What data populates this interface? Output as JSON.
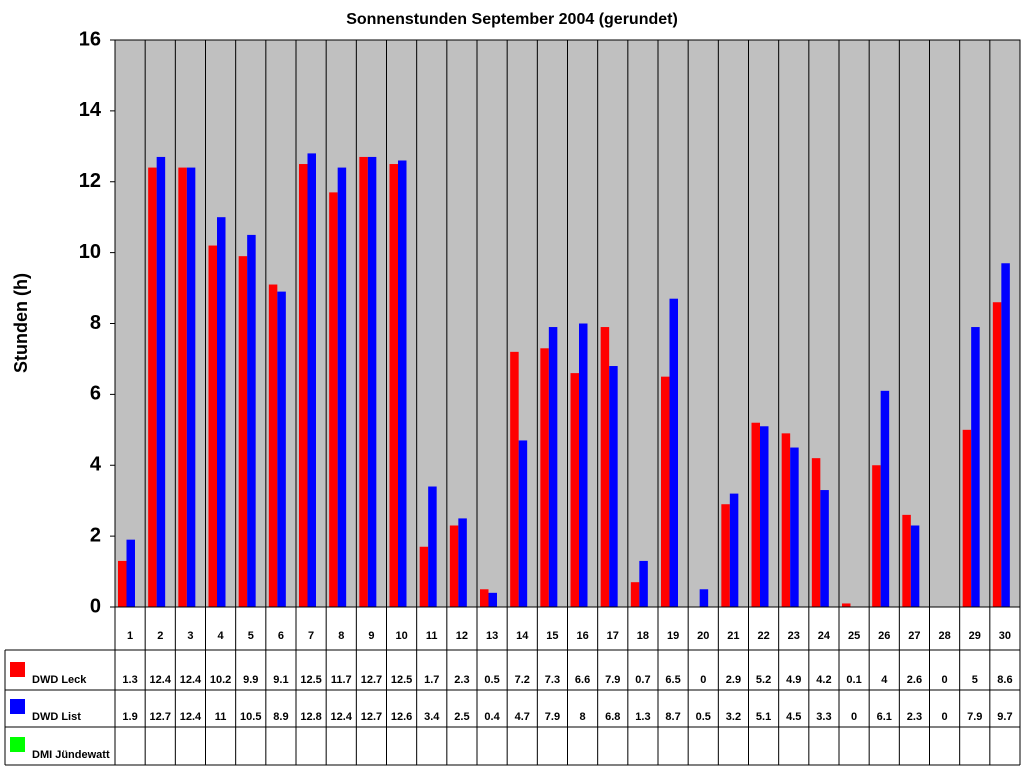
{
  "chart_data": {
    "type": "bar",
    "title": "Sonnenstunden September 2004 (gerundet)",
    "y_label": "Stunden (h)",
    "categories": [
      "1",
      "2",
      "3",
      "4",
      "5",
      "6",
      "7",
      "8",
      "9",
      "10",
      "11",
      "12",
      "13",
      "14",
      "15",
      "16",
      "17",
      "18",
      "19",
      "20",
      "21",
      "22",
      "23",
      "24",
      "25",
      "26",
      "27",
      "28",
      "29",
      "30"
    ],
    "series": [
      {
        "name": "DWD Leck",
        "color": "#ff0000",
        "values": [
          1.3,
          12.4,
          12.4,
          10.2,
          9.9,
          9.1,
          12.5,
          11.7,
          12.7,
          12.5,
          1.7,
          2.3,
          0.5,
          7.2,
          7.3,
          6.6,
          7.9,
          0.7,
          6.5,
          0,
          2.9,
          5.2,
          4.9,
          4.2,
          0.1,
          4,
          2.6,
          0,
          5,
          8.6
        ]
      },
      {
        "name": "DWD List",
        "color": "#0000ff",
        "values": [
          1.9,
          12.7,
          12.4,
          11,
          10.5,
          8.9,
          12.8,
          12.4,
          12.7,
          12.6,
          3.4,
          2.5,
          0.4,
          4.7,
          7.9,
          8,
          6.8,
          1.3,
          8.7,
          0.5,
          3.2,
          5.1,
          4.5,
          3.3,
          0,
          6.1,
          2.3,
          0,
          7.9,
          9.7
        ]
      },
      {
        "name": "DMI Jündewatt",
        "color": "#00ff00",
        "values": [
          null,
          null,
          null,
          null,
          null,
          null,
          null,
          null,
          null,
          null,
          null,
          null,
          null,
          null,
          null,
          null,
          null,
          null,
          null,
          null,
          null,
          null,
          null,
          null,
          null,
          null,
          null,
          null,
          null,
          null
        ]
      }
    ],
    "ylim": [
      0,
      16
    ],
    "yticks": [
      0,
      2,
      4,
      6,
      8,
      10,
      12,
      14,
      16
    ],
    "grid": "vertical",
    "plot_background": "#c0c0c0"
  }
}
